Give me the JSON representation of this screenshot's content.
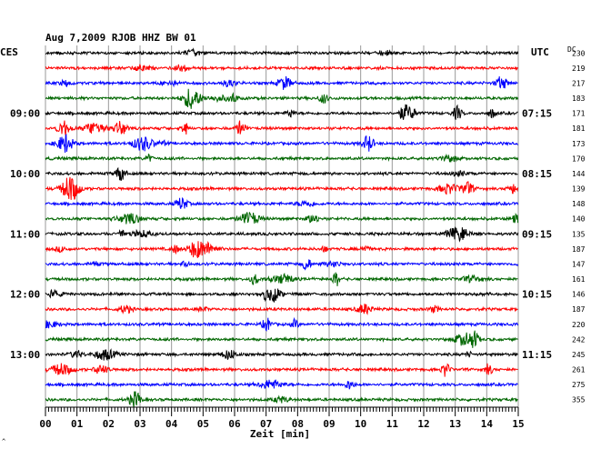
{
  "chart_data": {
    "type": "line",
    "title": "Aug 7,2009   RJOB HHZ BW 01",
    "xlabel": "Zeit [min]",
    "xlim": [
      0,
      15
    ],
    "x_ticks": [
      "00",
      "01",
      "02",
      "03",
      "04",
      "05",
      "06",
      "07",
      "08",
      "09",
      "10",
      "11",
      "12",
      "13",
      "14",
      "15"
    ],
    "left_axis_label": "CES",
    "right_axis_label": "UTC",
    "dc_header": "DC",
    "left_time_labels": [
      "09:00",
      "10:00",
      "11:00",
      "12:00",
      "13:00"
    ],
    "right_time_labels": [
      "07:15",
      "08:15",
      "09:15",
      "10:15",
      "11:15"
    ],
    "time_label_rows": [
      4,
      8,
      12,
      16,
      20
    ],
    "trace_colors": [
      "#000000",
      "#ff0000",
      "#0000ff",
      "#006600"
    ],
    "dc_offsets": [
      "230",
      "219",
      "217",
      "183",
      "171",
      "181",
      "173",
      "170",
      "144",
      "139",
      "148",
      "140",
      "135",
      "187",
      "147",
      "161",
      "146",
      "187",
      "220",
      "242",
      "245",
      "261",
      "275",
      "355"
    ],
    "grid": true,
    "bottom_marker": "^"
  }
}
